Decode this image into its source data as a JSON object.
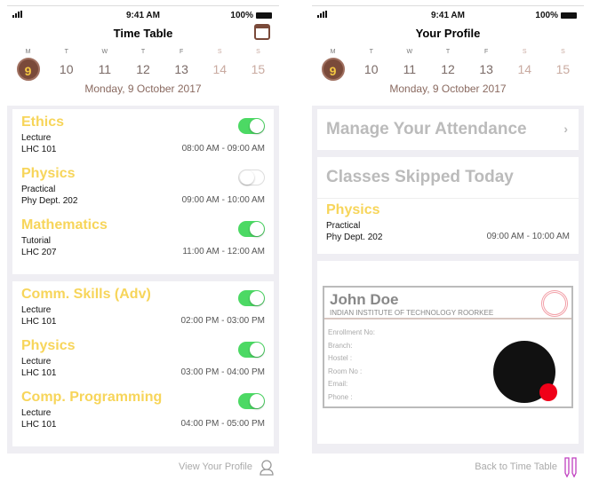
{
  "status": {
    "time": "9:41 AM",
    "battery": "100%"
  },
  "week": [
    {
      "l": "M",
      "n": "9"
    },
    {
      "l": "T",
      "n": "10"
    },
    {
      "l": "W",
      "n": "11"
    },
    {
      "l": "T",
      "n": "12"
    },
    {
      "l": "F",
      "n": "13"
    },
    {
      "l": "S",
      "n": "14"
    },
    {
      "l": "S",
      "n": "15"
    }
  ],
  "date": "Monday, 9 October 2017",
  "timetable": {
    "title": "Time Table",
    "cards": [
      [
        {
          "name": "Ethics",
          "type": "Lecture",
          "room": "LHC 101",
          "time": "08:00 AM - 09:00 AM",
          "on": true
        },
        {
          "name": "Physics",
          "type": "Practical",
          "room": "Phy Dept. 202",
          "time": "09:00 AM - 10:00 AM",
          "on": false
        },
        {
          "name": "Mathematics",
          "type": "Tutorial",
          "room": "LHC 207",
          "time": "11:00 AM - 12:00 AM",
          "on": true
        }
      ],
      [
        {
          "name": "Comm. Skills (Adv)",
          "type": "Lecture",
          "room": "LHC 101",
          "time": "02:00 PM - 03:00 PM",
          "on": true
        },
        {
          "name": "Physics",
          "type": "Lecture",
          "room": "LHC 101",
          "time": "03:00 PM - 04:00 PM",
          "on": true
        },
        {
          "name": "Comp. Programming",
          "type": "Lecture",
          "room": "LHC 101",
          "time": "04:00 PM - 05:00 PM",
          "on": true
        }
      ]
    ],
    "footer": "View Your Profile"
  },
  "profile": {
    "title": "Your Profile",
    "manage": "Manage Your Attendance",
    "chevron": "›",
    "skipped": "Classes Skipped Today",
    "skipped_item": {
      "name": "Physics",
      "type": "Practical",
      "room": "Phy Dept. 202",
      "time": "09:00 AM - 10:00 AM"
    },
    "card": {
      "name": "John Doe",
      "institute": "INDIAN INSTITUTE OF TECHNOLOGY ROORKEE",
      "fields": [
        "Enrollment No:",
        "Branch:",
        "Hostel :",
        "Room No :",
        "Email:",
        "Phone :"
      ]
    },
    "footer": "Back to Time Table"
  },
  "colors": {
    "accent": "#f7d55a",
    "brown": "#7a4a3a",
    "toggle_on": "#4cd964"
  }
}
